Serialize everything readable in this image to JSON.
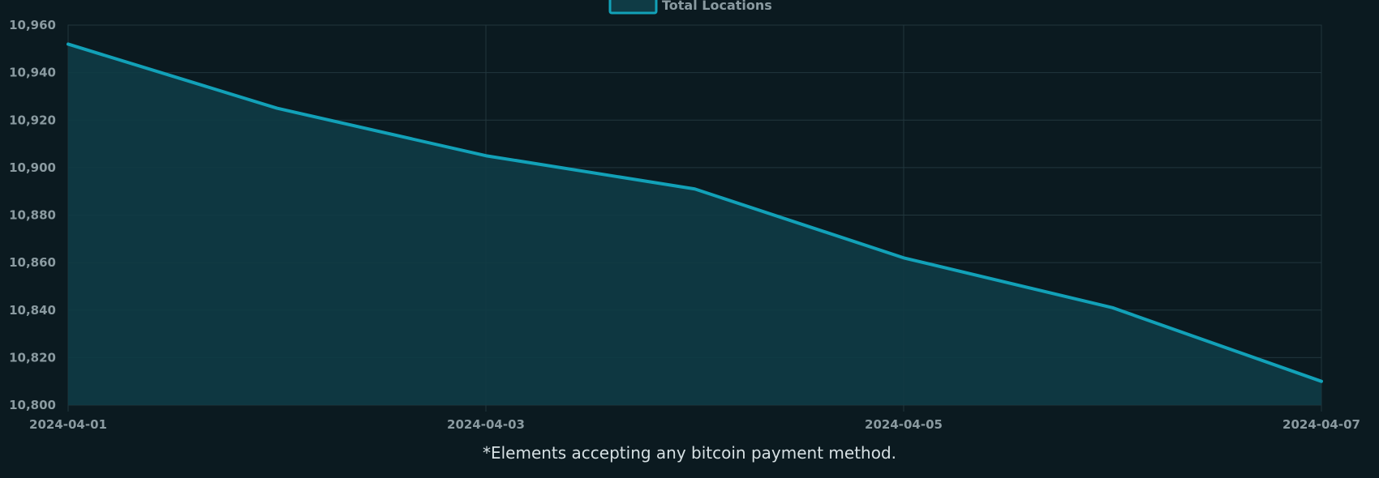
{
  "chart_data": {
    "type": "area",
    "title": "",
    "xlabel": "",
    "ylabel": "",
    "legend": {
      "position": "top-center",
      "items": [
        "Total Locations"
      ]
    },
    "x": [
      "2024-04-01",
      "2024-04-02",
      "2024-04-03",
      "2024-04-04",
      "2024-04-05",
      "2024-04-06",
      "2024-04-07"
    ],
    "series": [
      {
        "name": "Total Locations",
        "values": [
          10952,
          10925,
          10905,
          10891,
          10862,
          10841,
          10810
        ],
        "color": "#12a1b8",
        "fill": "#0f3b45"
      }
    ],
    "xticks": [
      "2024-04-01",
      "2024-04-03",
      "2024-04-05",
      "2024-04-07"
    ],
    "yticks": [
      10960,
      10940,
      10920,
      10900,
      10880,
      10860,
      10840,
      10820,
      10800
    ],
    "ylim": [
      10800,
      10960
    ],
    "grid": true
  },
  "footnote": "*Elements accepting any bitcoin payment method."
}
